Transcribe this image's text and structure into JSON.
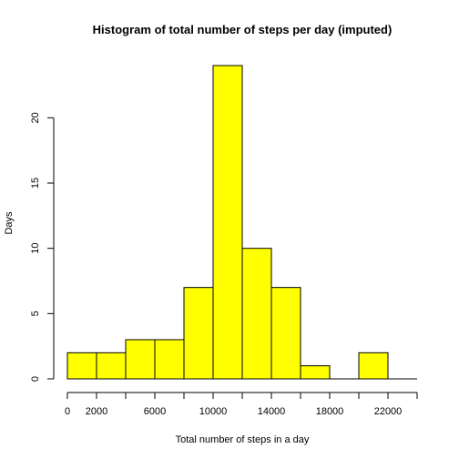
{
  "chart_data": {
    "type": "bar",
    "title": "Histogram of total number of steps per day (imputed)",
    "xlabel": "Total number of steps in a day",
    "ylabel": "Days",
    "bins": [
      {
        "from": 0,
        "to": 2000,
        "count": 2
      },
      {
        "from": 2000,
        "to": 4000,
        "count": 2
      },
      {
        "from": 4000,
        "to": 6000,
        "count": 3
      },
      {
        "from": 6000,
        "to": 8000,
        "count": 3
      },
      {
        "from": 8000,
        "to": 10000,
        "count": 7
      },
      {
        "from": 10000,
        "to": 12000,
        "count": 24
      },
      {
        "from": 12000,
        "to": 14000,
        "count": 10
      },
      {
        "from": 14000,
        "to": 16000,
        "count": 7
      },
      {
        "from": 16000,
        "to": 18000,
        "count": 1
      },
      {
        "from": 18000,
        "to": 20000,
        "count": 0
      },
      {
        "from": 20000,
        "to": 22000,
        "count": 2
      },
      {
        "from": 22000,
        "to": 24000,
        "count": 0
      }
    ],
    "xlim": [
      0,
      24000
    ],
    "ylim": [
      0,
      24
    ],
    "xticks": [
      0,
      2000,
      4000,
      6000,
      8000,
      10000,
      12000,
      14000,
      16000,
      18000,
      20000,
      22000,
      24000
    ],
    "xtick_labels": [
      "0",
      "2000",
      "",
      "6000",
      "",
      "10000",
      "",
      "14000",
      "",
      "18000",
      "",
      "22000",
      ""
    ],
    "yticks": [
      0,
      5,
      10,
      15,
      20
    ],
    "ytick_labels": [
      "0",
      "5",
      "10",
      "15",
      "20"
    ],
    "bar_color": "#ffff00",
    "grid": false,
    "legend": "none"
  }
}
